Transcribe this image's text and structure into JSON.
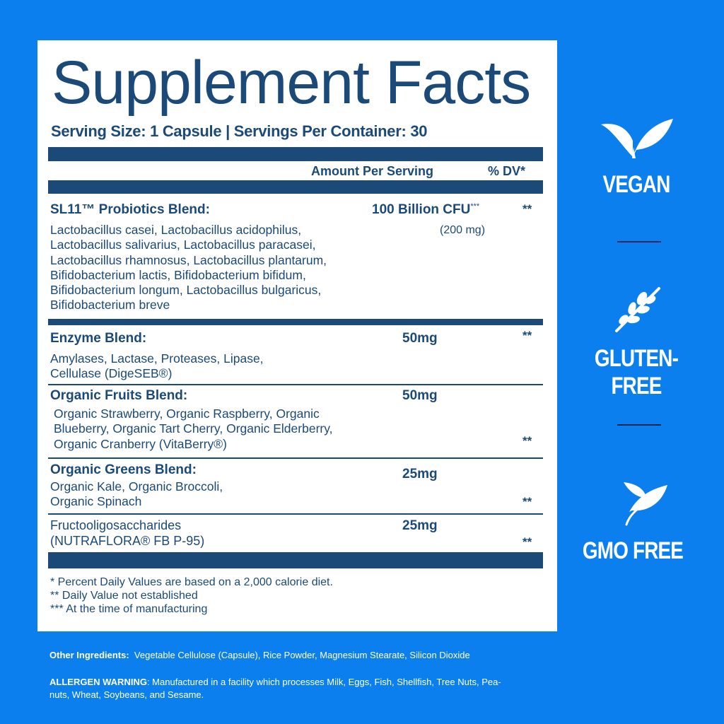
{
  "title": "Supplement Facts",
  "serving": "Serving Size: 1 Capsule | Servings Per Container: 30",
  "header": {
    "amount": "Amount Per Serving",
    "dv": "% DV*"
  },
  "rows": [
    {
      "name": "SL11™ Probiotics Blend:",
      "desc": "Lactobacillus casei, Lactobacillus acidophilus,\nLactobacillus salivarius, Lactobacillus paracasei,\nLactobacillus rhamnosus, Lactobacillus plantarum,\nBifidobacterium lactis, Bifidobacterium bifidum,\nBifidobacterium longum, Lactobacillus bulgaricus,\nBifidobacterium breve",
      "amount": "100 Billion CFU",
      "amount_sup": "***",
      "amount_sub": "(200 mg)",
      "dv": "**"
    },
    {
      "name": "Enzyme Blend:",
      "desc": "Amylases, Lactase, Proteases, Lipase,\nCellulase (DigeSEB®)",
      "amount": "50mg",
      "dv": "**"
    },
    {
      "name": "Organic Fruits Blend:",
      "desc": "Organic Strawberry, Organic Raspberry, Organic\nBlueberry, Organic Tart Cherry, Organic Elderberry,\nOrganic Cranberry (VitaBerry®)",
      "amount": "50mg",
      "dv": "**"
    },
    {
      "name": "Organic Greens Blend:",
      "desc": "Organic Kale, Organic Broccoli,\nOrganic Spinach",
      "amount": "25mg",
      "dv": "**"
    },
    {
      "name": "Fructooligosaccharides\n(NUTRAFLORA® FB P-95)",
      "amount": "25mg",
      "dv": "**"
    }
  ],
  "notes": "* Percent Daily Values are based on a 2,000 calorie diet.\n** Daily Value not established\n*** At the time of manufacturing",
  "other_ingredients": {
    "label": "Other Ingredients:",
    "text": "Vegetable Cellulose (Capsule), Rice Powder, Magnesium Stearate, Silicon Dioxide"
  },
  "allergen": {
    "label": "ALLERGEN WARNING",
    "text": ": Manufactured in a facility which processes Milk, Eggs, Fish, Shellfish, Tree Nuts, Pea-",
    "text2": "nuts, Wheat, Soybeans, and Sesame."
  },
  "badges": [
    {
      "label": "VEGAN",
      "icon": "leaves-icon"
    },
    {
      "label": "GLUTEN-FREE",
      "icon": "wheat-icon"
    },
    {
      "label": "GMO FREE",
      "icon": "leaf-icon"
    }
  ],
  "colors": {
    "background": "#0b7fee",
    "navy": "#1b4a79",
    "panel": "#ffffff"
  }
}
